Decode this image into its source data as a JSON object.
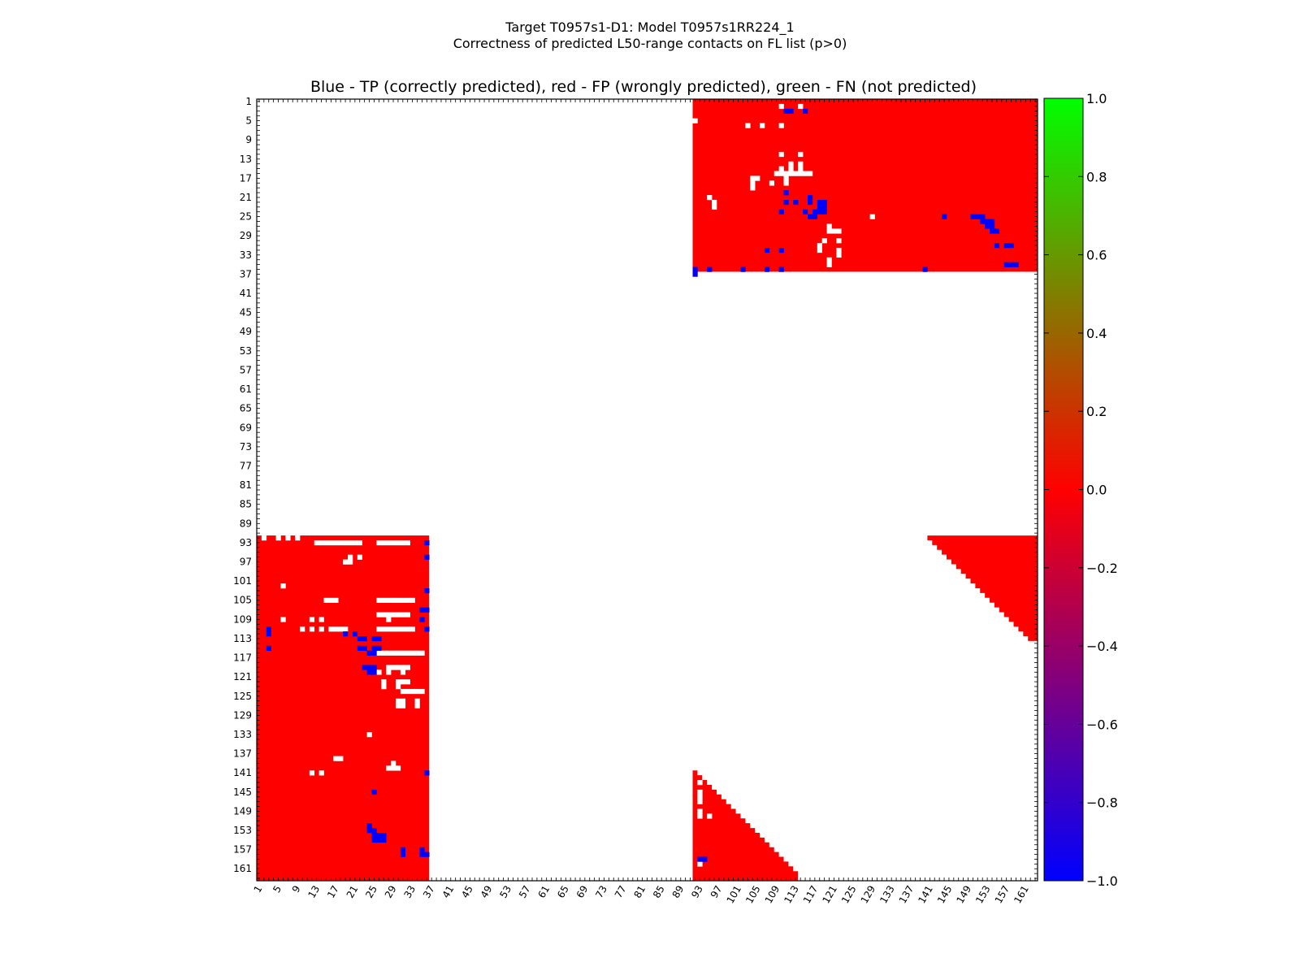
{
  "figure": {
    "suptitle_line1": "Target T0957s1-D1: Model T0957s1RR224_1",
    "suptitle_line2": "Correctness of predicted L50-range contacts on FL list (p>0)"
  },
  "chart_data": {
    "type": "heatmap",
    "title": "Blue - TP (correctly predicted), red - FP (wrongly predicted), green - FN (not predicted)",
    "xlabel": "",
    "ylabel": "",
    "xlim": [
      1,
      163
    ],
    "ylim": [
      163,
      1
    ],
    "y_axis_inverted": true,
    "tick_labels": [
      "1",
      "5",
      "9",
      "13",
      "17",
      "21",
      "25",
      "29",
      "33",
      "37",
      "41",
      "45",
      "49",
      "53",
      "57",
      "61",
      "65",
      "69",
      "73",
      "77",
      "81",
      "85",
      "89",
      "93",
      "97",
      "101",
      "105",
      "109",
      "113",
      "117",
      "121",
      "125",
      "129",
      "133",
      "137",
      "141",
      "145",
      "149",
      "153",
      "157",
      "161"
    ],
    "grid": false,
    "colorbar": {
      "range": [
        -1.0,
        1.0
      ],
      "tick_labels": [
        "1.0",
        "0.8",
        "0.6",
        "0.4",
        "0.2",
        "0.0",
        "−0.2",
        "−0.4",
        "−0.6",
        "−0.8",
        "−1.0"
      ],
      "colors": [
        "#0000ff",
        "#ff0000",
        "#00ff00"
      ]
    },
    "value_legend": {
      "tp": {
        "value": -1,
        "color": "#0000ff",
        "meaning": "TP (correctly predicted)"
      },
      "fp": {
        "value": 0,
        "color": "#ff0000",
        "meaning": "FP (wrongly predicted)"
      },
      "fn": {
        "value": 1,
        "color": "#00ff00",
        "meaning": "FN (not predicted)"
      }
    },
    "fp_regions": [
      {
        "name": "block-top-right",
        "rows": [
          1,
          36
        ],
        "cols": [
          92,
          163
        ]
      },
      {
        "name": "block-bottom-left",
        "rows": [
          92,
          163
        ],
        "cols": [
          1,
          36
        ]
      },
      {
        "name": "triangle-right",
        "rows": [
          92,
          113
        ],
        "cols_from_diagonal": [
          141,
          163
        ]
      },
      {
        "name": "triangle-bottom",
        "rows": [
          141,
          163
        ],
        "cols_to_diagonal": [
          92,
          113
        ]
      }
    ],
    "tp_cells": [
      [
        3,
        111
      ],
      [
        3,
        112
      ],
      [
        3,
        115
      ],
      [
        20,
        111
      ],
      [
        21,
        116
      ],
      [
        22,
        111
      ],
      [
        22,
        113
      ],
      [
        22,
        116
      ],
      [
        22,
        118
      ],
      [
        22,
        119
      ],
      [
        23,
        118
      ],
      [
        23,
        119
      ],
      [
        24,
        110
      ],
      [
        24,
        115
      ],
      [
        24,
        117
      ],
      [
        24,
        118
      ],
      [
        24,
        119
      ],
      [
        25,
        116
      ],
      [
        25,
        117
      ],
      [
        25,
        144
      ],
      [
        25,
        150
      ],
      [
        25,
        151
      ],
      [
        25,
        152
      ],
      [
        26,
        152
      ],
      [
        26,
        153
      ],
      [
        26,
        154
      ],
      [
        27,
        153
      ],
      [
        27,
        154
      ],
      [
        28,
        154
      ],
      [
        28,
        155
      ],
      [
        31,
        155
      ],
      [
        31,
        157
      ],
      [
        31,
        158
      ],
      [
        32,
        107
      ],
      [
        32,
        110
      ],
      [
        35,
        157
      ],
      [
        35,
        158
      ],
      [
        35,
        159
      ],
      [
        36,
        92
      ],
      [
        36,
        95
      ],
      [
        36,
        102
      ],
      [
        36,
        107
      ],
      [
        36,
        110
      ],
      [
        36,
        140
      ],
      [
        37,
        92
      ],
      [
        93,
        36
      ],
      [
        96,
        36
      ],
      [
        103,
        36
      ],
      [
        107,
        35
      ],
      [
        107,
        36
      ],
      [
        109,
        35
      ],
      [
        111,
        3
      ],
      [
        111,
        36
      ],
      [
        112,
        3
      ],
      [
        112,
        19
      ],
      [
        112,
        21
      ],
      [
        113,
        22
      ],
      [
        113,
        23
      ],
      [
        113,
        25
      ],
      [
        113,
        26
      ],
      [
        115,
        3
      ],
      [
        115,
        22
      ],
      [
        115,
        23
      ],
      [
        115,
        25
      ],
      [
        115,
        26
      ],
      [
        116,
        24
      ],
      [
        116,
        25
      ],
      [
        119,
        23
      ],
      [
        119,
        24
      ],
      [
        119,
        25
      ],
      [
        120,
        24
      ],
      [
        120,
        25
      ],
      [
        141,
        36
      ],
      [
        145,
        25
      ],
      [
        152,
        24
      ],
      [
        153,
        24
      ],
      [
        153,
        25
      ],
      [
        154,
        25
      ],
      [
        154,
        26
      ],
      [
        154,
        27
      ],
      [
        155,
        25
      ],
      [
        155,
        26
      ],
      [
        155,
        27
      ],
      [
        157,
        31
      ],
      [
        157,
        35
      ],
      [
        158,
        31
      ],
      [
        158,
        35
      ],
      [
        158,
        36
      ],
      [
        159,
        93
      ],
      [
        159,
        94
      ]
    ],
    "empty_cells": [
      [
        2,
        110
      ],
      [
        2,
        114
      ],
      [
        5,
        92
      ],
      [
        6,
        103
      ],
      [
        6,
        106
      ],
      [
        6,
        110
      ],
      [
        12,
        110
      ],
      [
        12,
        114
      ],
      [
        14,
        112
      ],
      [
        14,
        114
      ],
      [
        15,
        110
      ],
      [
        15,
        112
      ],
      [
        15,
        114
      ],
      [
        16,
        109
      ],
      [
        16,
        110
      ],
      [
        16,
        111
      ],
      [
        16,
        112
      ],
      [
        16,
        113
      ],
      [
        16,
        114
      ],
      [
        16,
        115
      ],
      [
        16,
        116
      ],
      [
        17,
        104
      ],
      [
        17,
        105
      ],
      [
        17,
        111
      ],
      [
        18,
        104
      ],
      [
        18,
        108
      ],
      [
        18,
        111
      ],
      [
        19,
        104
      ],
      [
        21,
        95
      ],
      [
        22,
        96
      ],
      [
        23,
        96
      ],
      [
        25,
        129
      ],
      [
        27,
        120
      ],
      [
        28,
        120
      ],
      [
        28,
        121
      ],
      [
        28,
        122
      ],
      [
        30,
        119
      ],
      [
        30,
        122
      ],
      [
        31,
        118
      ],
      [
        32,
        118
      ],
      [
        32,
        122
      ],
      [
        33,
        122
      ],
      [
        34,
        120
      ],
      [
        35,
        120
      ],
      [
        92,
        2
      ],
      [
        92,
        5
      ],
      [
        92,
        7
      ],
      [
        92,
        9
      ],
      [
        93,
        13
      ],
      [
        93,
        14
      ],
      [
        93,
        15
      ],
      [
        93,
        16
      ],
      [
        93,
        17
      ],
      [
        93,
        18
      ],
      [
        93,
        19
      ],
      [
        93,
        20
      ],
      [
        93,
        21
      ],
      [
        93,
        22
      ],
      [
        93,
        26
      ],
      [
        93,
        27
      ],
      [
        93,
        28
      ],
      [
        93,
        29
      ],
      [
        93,
        30
      ],
      [
        93,
        31
      ],
      [
        93,
        32
      ],
      [
        96,
        20
      ],
      [
        96,
        22
      ],
      [
        97,
        19
      ],
      [
        97,
        20
      ],
      [
        102,
        6
      ],
      [
        105,
        15
      ],
      [
        105,
        16
      ],
      [
        105,
        17
      ],
      [
        105,
        26
      ],
      [
        105,
        27
      ],
      [
        105,
        28
      ],
      [
        105,
        29
      ],
      [
        105,
        30
      ],
      [
        105,
        31
      ],
      [
        105,
        32
      ],
      [
        105,
        33
      ],
      [
        108,
        26
      ],
      [
        108,
        27
      ],
      [
        108,
        28
      ],
      [
        108,
        29
      ],
      [
        108,
        30
      ],
      [
        108,
        31
      ],
      [
        108,
        32
      ],
      [
        109,
        6
      ],
      [
        109,
        12
      ],
      [
        109,
        14
      ],
      [
        109,
        28
      ],
      [
        111,
        10
      ],
      [
        111,
        12
      ],
      [
        111,
        14
      ],
      [
        111,
        16
      ],
      [
        111,
        17
      ],
      [
        111,
        18
      ],
      [
        111,
        19
      ],
      [
        111,
        26
      ],
      [
        111,
        27
      ],
      [
        111,
        28
      ],
      [
        111,
        29
      ],
      [
        111,
        30
      ],
      [
        111,
        31
      ],
      [
        111,
        32
      ],
      [
        111,
        33
      ],
      [
        116,
        26
      ],
      [
        116,
        27
      ],
      [
        116,
        28
      ],
      [
        116,
        29
      ],
      [
        116,
        30
      ],
      [
        116,
        31
      ],
      [
        116,
        32
      ],
      [
        116,
        33
      ],
      [
        116,
        34
      ],
      [
        116,
        35
      ],
      [
        119,
        28
      ],
      [
        119,
        29
      ],
      [
        119,
        30
      ],
      [
        119,
        31
      ],
      [
        119,
        32
      ],
      [
        120,
        26
      ],
      [
        120,
        28
      ],
      [
        120,
        31
      ],
      [
        122,
        27
      ],
      [
        122,
        30
      ],
      [
        122,
        31
      ],
      [
        122,
        32
      ],
      [
        123,
        27
      ],
      [
        123,
        30
      ],
      [
        124,
        31
      ],
      [
        124,
        32
      ],
      [
        124,
        33
      ],
      [
        124,
        34
      ],
      [
        124,
        35
      ],
      [
        126,
        30
      ],
      [
        126,
        31
      ],
      [
        126,
        34
      ],
      [
        127,
        30
      ],
      [
        127,
        31
      ],
      [
        127,
        34
      ],
      [
        133,
        24
      ],
      [
        138,
        17
      ],
      [
        138,
        18
      ],
      [
        139,
        29
      ],
      [
        140,
        28
      ],
      [
        140,
        29
      ],
      [
        140,
        30
      ],
      [
        141,
        12
      ],
      [
        141,
        14
      ],
      [
        143,
        93
      ],
      [
        145,
        93
      ],
      [
        146,
        93
      ],
      [
        147,
        93
      ],
      [
        149,
        93
      ],
      [
        150,
        93
      ],
      [
        150,
        95
      ],
      [
        160,
        93
      ]
    ]
  }
}
